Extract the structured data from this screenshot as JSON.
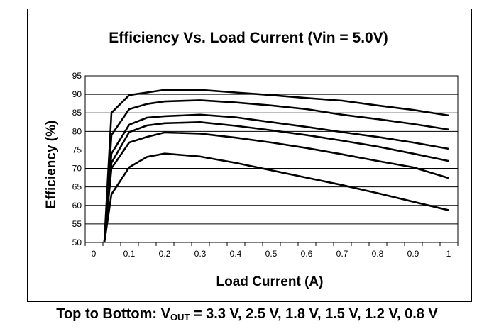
{
  "chart_data": {
    "type": "line",
    "title": "Efficiency Vs. Load Current (Vin = 5.0V)",
    "xlabel": "Load Current (A)",
    "ylabel": "Efficiency (%)",
    "xlim": [
      0,
      1
    ],
    "ylim": [
      50,
      95
    ],
    "xticks": [
      "0",
      "0.1",
      "0.2",
      "0.3",
      "0.4",
      "0.5",
      "0.6",
      "0.7",
      "0.8",
      "0.9",
      "1"
    ],
    "yticks": [
      "50",
      "55",
      "60",
      "65",
      "70",
      "75",
      "80",
      "85",
      "90",
      "95"
    ],
    "grid": "horizontal",
    "x": [
      0.03,
      0.05,
      0.1,
      0.15,
      0.2,
      0.3,
      0.4,
      0.5,
      0.6,
      0.7,
      0.8,
      0.9,
      1.0
    ],
    "series": [
      {
        "name": "3.3 V",
        "values": [
          50,
          85,
          89.8,
          90.5,
          91.2,
          91.2,
          90.5,
          89.8,
          89,
          88.3,
          87,
          85.8,
          84.3
        ]
      },
      {
        "name": "2.5 V",
        "values": [
          50,
          79,
          86,
          87.4,
          88.1,
          88.4,
          87.8,
          87,
          86,
          84.5,
          83.3,
          82,
          80.5
        ]
      },
      {
        "name": "1.8 V",
        "values": [
          50,
          74,
          81.8,
          83.7,
          84.1,
          84.5,
          83.8,
          82.5,
          81.2,
          79.8,
          78.5,
          77,
          75.3
        ]
      },
      {
        "name": "1.5 V",
        "values": [
          50,
          71.5,
          79.8,
          81.6,
          82.2,
          82.5,
          81.5,
          80.3,
          79,
          77.5,
          75.9,
          74,
          72
        ]
      },
      {
        "name": "1.2 V",
        "values": [
          50,
          70,
          77,
          78.5,
          79.7,
          79.4,
          78.3,
          77,
          75.5,
          73.8,
          72,
          70.3,
          67.4
        ]
      },
      {
        "name": "0.8 V",
        "values": [
          50,
          63,
          70.3,
          73.1,
          74,
          73.2,
          71.5,
          69.5,
          67.5,
          65.5,
          63.3,
          61,
          58.7
        ]
      }
    ]
  },
  "footer": {
    "prefix": "Top to Bottom: V",
    "sub": "OUT",
    "suffix": " = 3.3 V, 2.5 V, 1.8 V, 1.5 V, 1.2 V, 0.8 V"
  }
}
